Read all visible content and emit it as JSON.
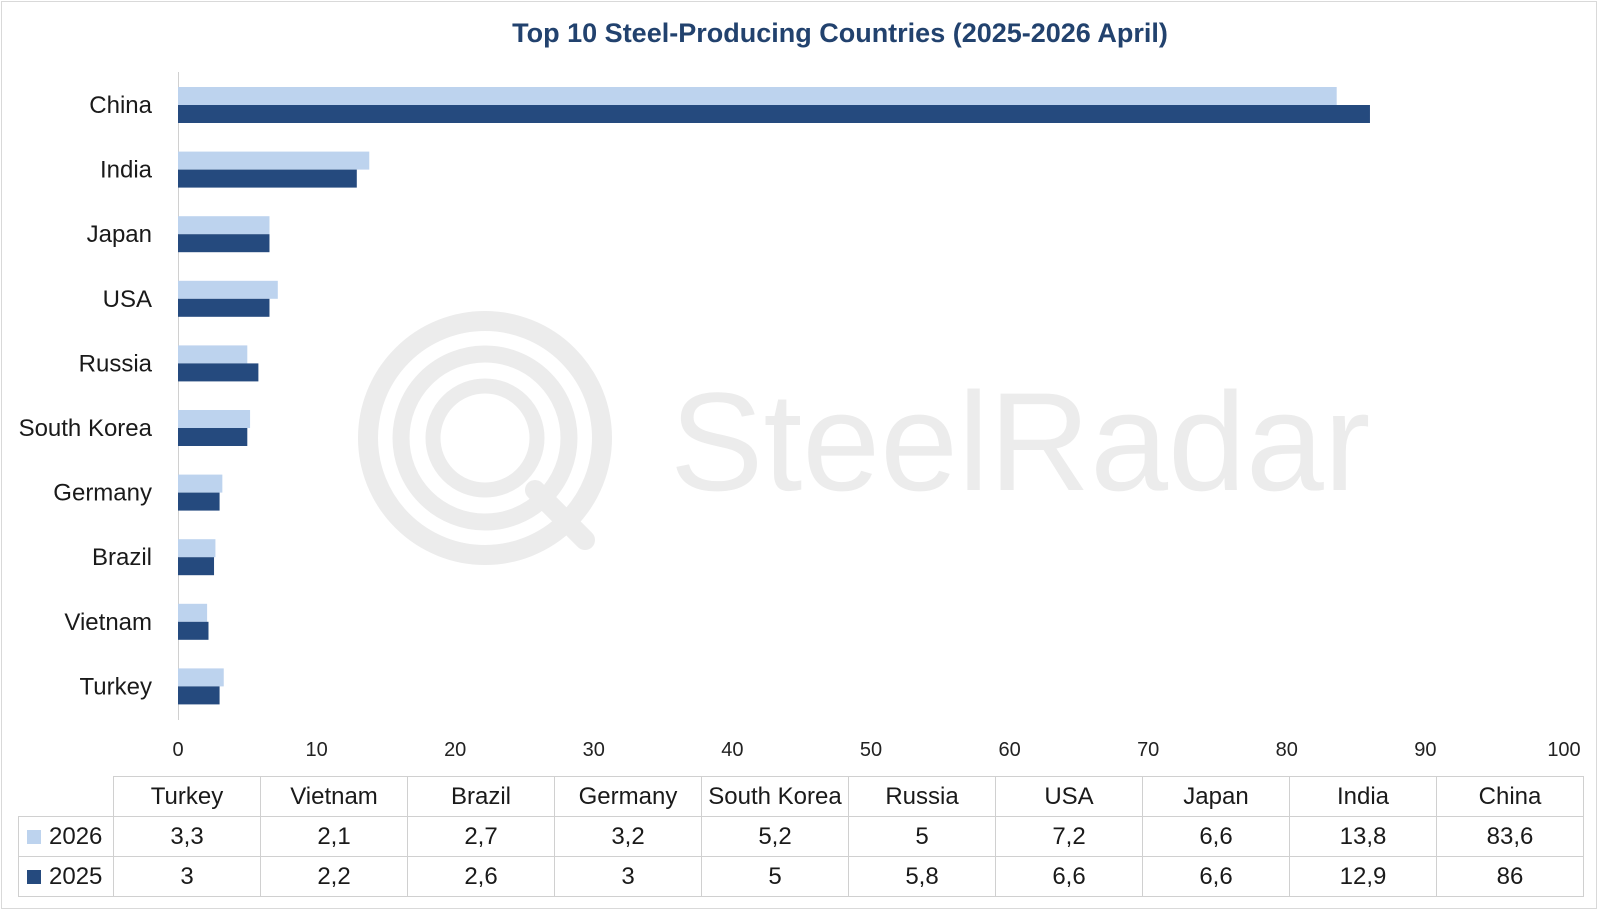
{
  "chart_data": {
    "type": "bar",
    "orientation": "horizontal",
    "title": "Top 10 Steel-Producing Countries (2025-2026 April)",
    "categories": [
      "China",
      "India",
      "Japan",
      "USA",
      "Russia",
      "South Korea",
      "Germany",
      "Brazil",
      "Vietnam",
      "Turkey"
    ],
    "series": [
      {
        "name": "2026",
        "color": "#bdd3ee",
        "values": [
          83.6,
          13.8,
          6.6,
          7.2,
          5,
          5.2,
          3.2,
          2.7,
          2.1,
          3.3
        ]
      },
      {
        "name": "2025",
        "color": "#254a7e",
        "values": [
          86,
          12.9,
          6.6,
          6.6,
          5.8,
          5,
          3,
          2.6,
          2.2,
          3
        ]
      }
    ],
    "xlim": [
      0,
      100
    ],
    "xticks": [
      0,
      10,
      20,
      30,
      40,
      50,
      60,
      70,
      80,
      90,
      100
    ],
    "grid": false,
    "legend": "data-table"
  },
  "data_table": {
    "columns": [
      "Turkey",
      "Vietnam",
      "Brazil",
      "Germany",
      "South Korea",
      "Russia",
      "USA",
      "Japan",
      "India",
      "China"
    ],
    "rows": [
      {
        "label": "2026",
        "color": "#bdd3ee",
        "values": [
          "3,3",
          "2,1",
          "2,7",
          "3,2",
          "5,2",
          "5",
          "7,2",
          "6,6",
          "13,8",
          "83,6"
        ]
      },
      {
        "label": "2025",
        "color": "#254a7e",
        "values": [
          "3",
          "2,2",
          "2,6",
          "3",
          "5",
          "5,8",
          "6,6",
          "6,6",
          "12,9",
          "86"
        ]
      }
    ]
  },
  "watermark": {
    "text": "SteelRadar",
    "logo": "radar-logo-icon"
  }
}
